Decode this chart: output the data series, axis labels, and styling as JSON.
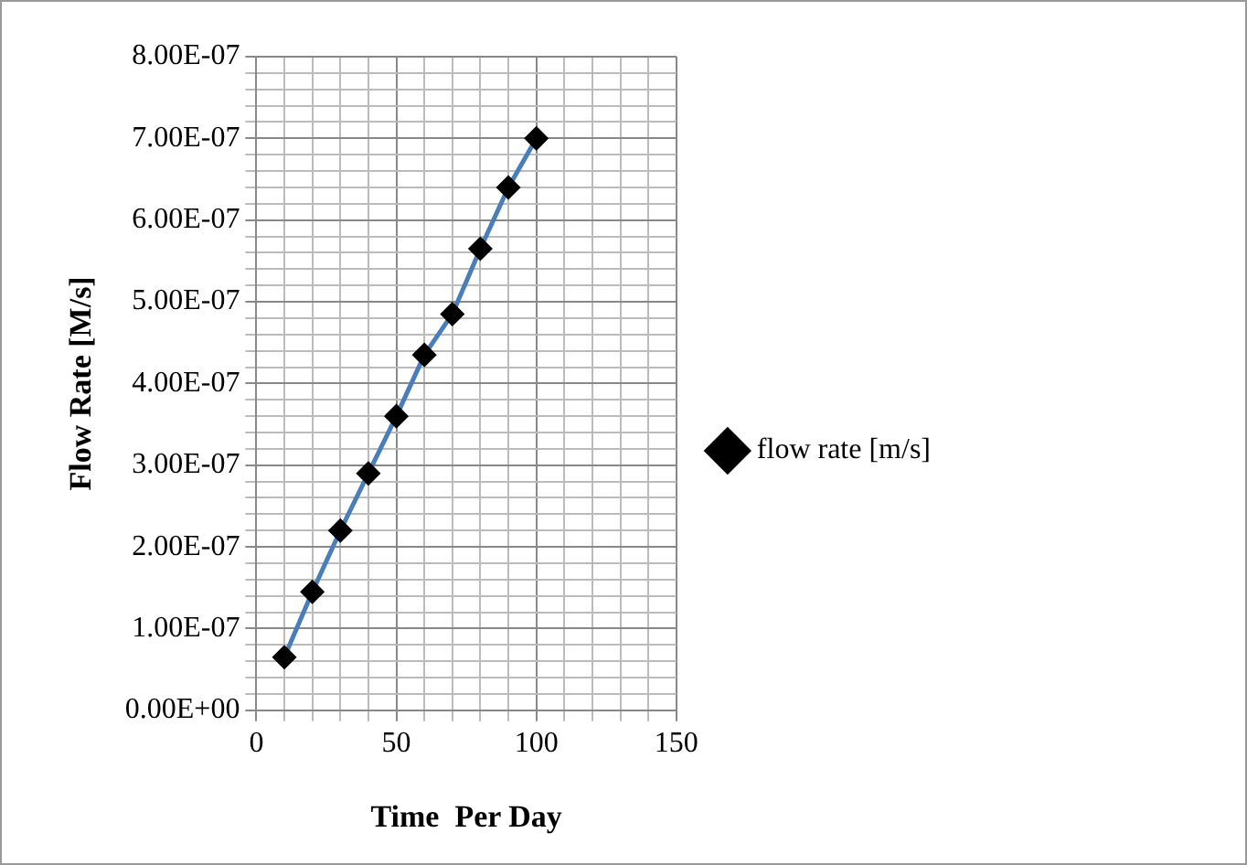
{
  "chart_data": {
    "type": "line",
    "xlabel": "Time  Per Day",
    "ylabel": "Flow Rate [M/s]",
    "x": [
      10,
      20,
      30,
      40,
      50,
      60,
      70,
      80,
      90,
      100
    ],
    "series": [
      {
        "name": "flow rate [m/s]",
        "color": "#4a7ebb",
        "values": [
          6.5e-08,
          1.45e-07,
          2.2e-07,
          2.9e-07,
          3.6e-07,
          4.35e-07,
          4.85e-07,
          5.65e-07,
          6.4e-07,
          7e-07
        ]
      }
    ],
    "xlim": [
      0,
      150
    ],
    "xticks": [
      0,
      {
        "value": 10,
        "label": null
      },
      {
        "value": 20,
        "label": null
      },
      {
        "value": 30,
        "label": null
      },
      {
        "value": 40,
        "label": null
      },
      50,
      {
        "value": 60,
        "label": null
      },
      {
        "value": 70,
        "label": null
      },
      {
        "value": 80,
        "label": null
      },
      {
        "value": 90,
        "label": null
      },
      100,
      {
        "value": 110,
        "label": null
      },
      {
        "value": 120,
        "label": null
      },
      {
        "value": 130,
        "label": null
      },
      {
        "value": 140,
        "label": null
      },
      150
    ],
    "ylim": [
      0,
      8e-07
    ],
    "yticks": [
      {
        "value": 0,
        "label": "0.00E+00"
      },
      {
        "value": 2e-08,
        "label": null
      },
      {
        "value": 4e-08,
        "label": null
      },
      {
        "value": 6e-08,
        "label": null
      },
      {
        "value": 8e-08,
        "label": null
      },
      {
        "value": 1e-07,
        "label": "1.00E-07"
      },
      {
        "value": 1.2e-07,
        "label": null
      },
      {
        "value": 1.4e-07,
        "label": null
      },
      {
        "value": 1.6e-07,
        "label": null
      },
      {
        "value": 1.8e-07,
        "label": null
      },
      {
        "value": 2e-07,
        "label": "2.00E-07"
      },
      {
        "value": 2.2e-07,
        "label": null
      },
      {
        "value": 2.4e-07,
        "label": null
      },
      {
        "value": 2.6e-07,
        "label": null
      },
      {
        "value": 2.8e-07,
        "label": null
      },
      {
        "value": 3e-07,
        "label": "3.00E-07"
      },
      {
        "value": 3.2e-07,
        "label": null
      },
      {
        "value": 3.4e-07,
        "label": null
      },
      {
        "value": 3.6e-07,
        "label": null
      },
      {
        "value": 3.8e-07,
        "label": null
      },
      {
        "value": 4e-07,
        "label": "4.00E-07"
      },
      {
        "value": 4.2e-07,
        "label": null
      },
      {
        "value": 4.4e-07,
        "label": null
      },
      {
        "value": 4.6e-07,
        "label": null
      },
      {
        "value": 4.8e-07,
        "label": null
      },
      {
        "value": 5e-07,
        "label": "5.00E-07"
      },
      {
        "value": 5.2e-07,
        "label": null
      },
      {
        "value": 5.4e-07,
        "label": null
      },
      {
        "value": 5.6e-07,
        "label": null
      },
      {
        "value": 5.8e-07,
        "label": null
      },
      {
        "value": 6e-07,
        "label": "6.00E-07"
      },
      {
        "value": 6.2e-07,
        "label": null
      },
      {
        "value": 6.4e-07,
        "label": null
      },
      {
        "value": 6.6e-07,
        "label": null
      },
      {
        "value": 6.8e-07,
        "label": null
      },
      {
        "value": 7e-07,
        "label": "7.00E-07"
      },
      {
        "value": 7.2e-07,
        "label": null
      },
      {
        "value": 7.4e-07,
        "label": null
      },
      {
        "value": 7.6e-07,
        "label": null
      },
      {
        "value": 7.8e-07,
        "label": null
      },
      {
        "value": 8e-07,
        "label": "8.00E-07"
      }
    ],
    "grid": true,
    "legend": "right",
    "marker": "diamond",
    "line_style": "solid"
  }
}
